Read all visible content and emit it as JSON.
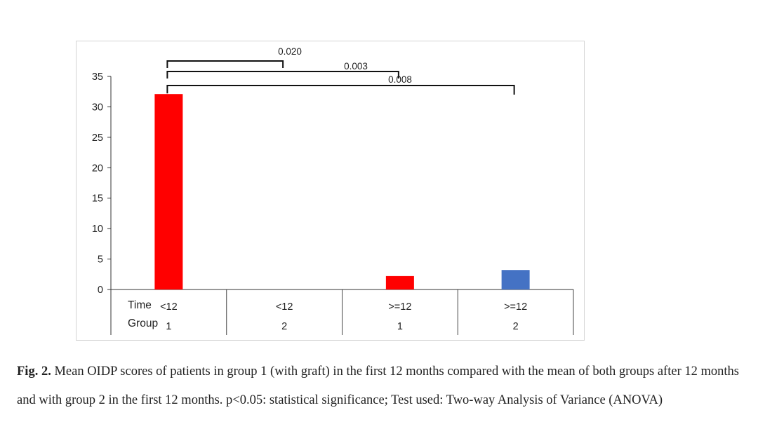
{
  "chart_data": {
    "type": "bar",
    "title": "",
    "xlabel": "",
    "ylabel": "",
    "ylim": [
      0,
      35
    ],
    "yticks": [
      0,
      5,
      10,
      15,
      20,
      25,
      30,
      35
    ],
    "row_labels": [
      "Time",
      "Group"
    ],
    "categories": [
      {
        "time": "<12",
        "group": "1"
      },
      {
        "time": "<12",
        "group": "2"
      },
      {
        "time": ">=12",
        "group": "1"
      },
      {
        "time": ">=12",
        "group": "2"
      }
    ],
    "values": [
      32.1,
      0,
      2.2,
      3.2
    ],
    "bar_colors": [
      "#ff0000",
      "#ff0000",
      "#ff0000",
      "#4472c4"
    ],
    "significance": [
      {
        "from": 0,
        "to": 1,
        "label": "0.020"
      },
      {
        "from": 0,
        "to": 2,
        "label": "0.003"
      },
      {
        "from": 0,
        "to": 3,
        "label": "0.008"
      }
    ],
    "grid": false
  },
  "caption": {
    "label": "Fig. 2.",
    "text": "Mean OIDP scores of patients in group 1 (with graft) in the first 12 months compared with the mean of both groups after 12 months and with group 2 in the first 12 months. p<0.05: statistical significance; Test used: Two-way Analysis of Variance (ANOVA)"
  }
}
